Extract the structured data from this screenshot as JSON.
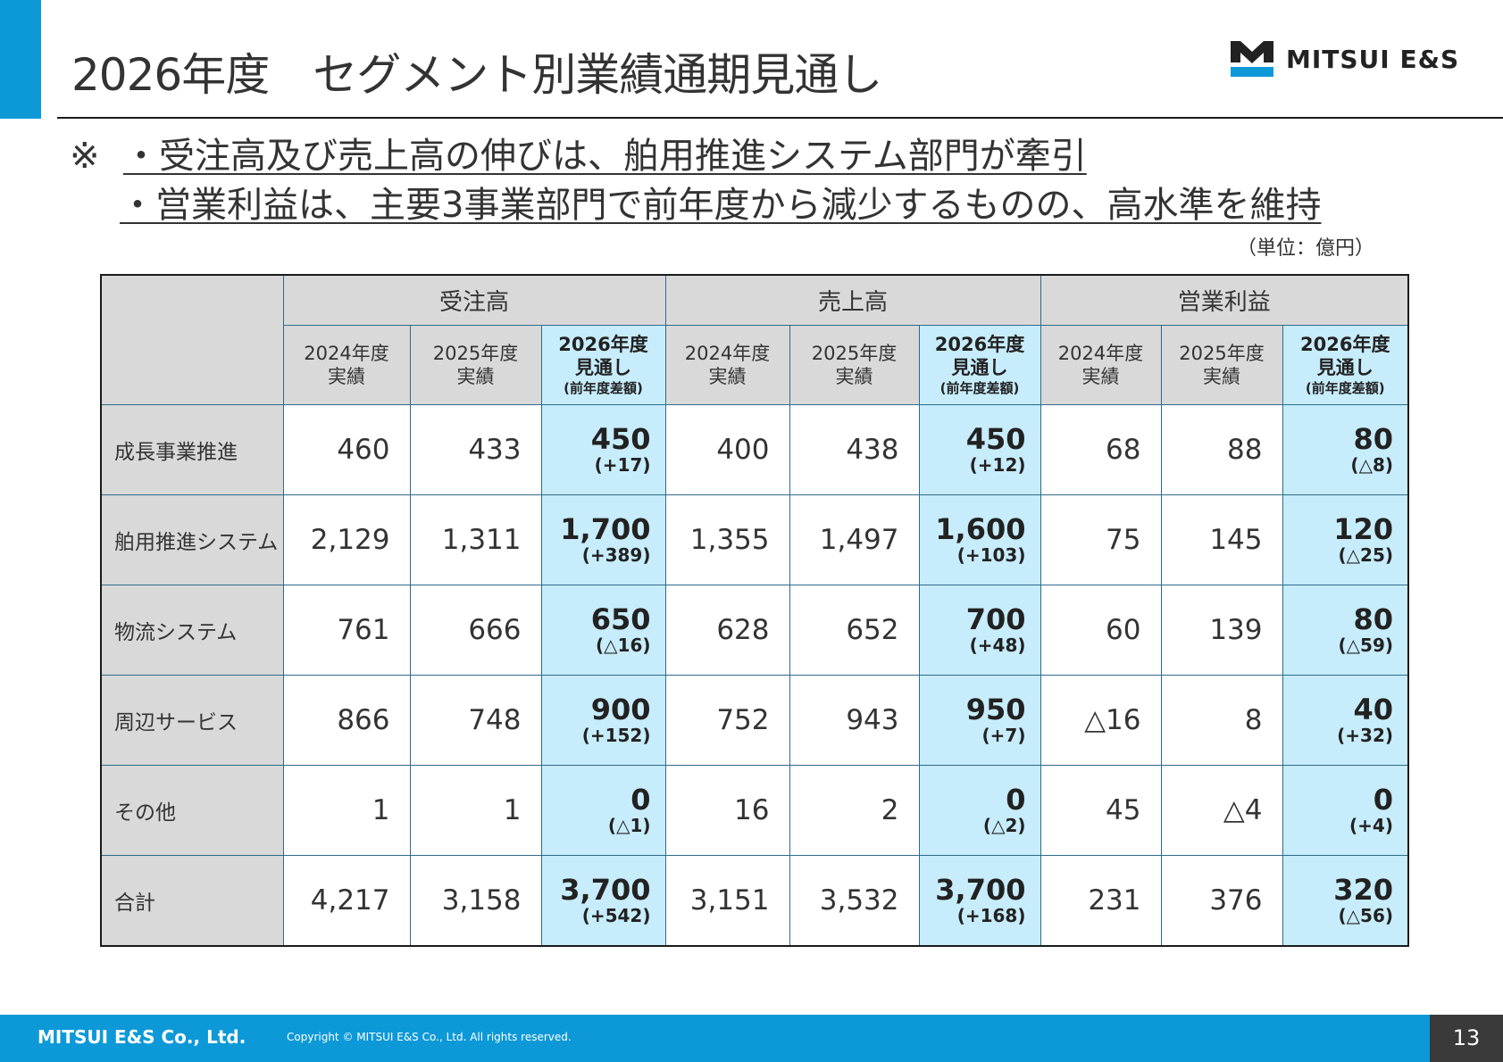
{
  "title": "2026年度　セグメント別業績通期見通し",
  "brand": {
    "name": "MITSUI E&S",
    "colors": {
      "black": "#222222",
      "blue": "#0d99d8"
    }
  },
  "summary": {
    "mark": "※",
    "line1": "・受注高及び売上高の伸びは、舶用推進システム部門が牽引",
    "line2": "・営業利益は、主要3事業部門で前年度から減少するものの、高水準を維持"
  },
  "unit_note": "（単位：億円）",
  "table": {
    "groups": [
      "受注高",
      "売上高",
      "営業利益"
    ],
    "sub_headers": {
      "actual_2024": [
        "2024年度",
        "実績"
      ],
      "actual_2025": [
        "2025年度",
        "実績"
      ],
      "forecast_2026": [
        "2026年度",
        "見通し",
        "(前年度差額)"
      ]
    },
    "rows": [
      {
        "label": "成長事業推進",
        "orders": {
          "y2024": "460",
          "y2025": "433",
          "f2026": "450",
          "diff": "(+17)"
        },
        "sales": {
          "y2024": "400",
          "y2025": "438",
          "f2026": "450",
          "diff": "(+12)"
        },
        "profit": {
          "y2024": "68",
          "y2025": "88",
          "f2026": "80",
          "diff": "(△8)"
        }
      },
      {
        "label": "舶用推進システム",
        "orders": {
          "y2024": "2,129",
          "y2025": "1,311",
          "f2026": "1,700",
          "diff": "(+389)"
        },
        "sales": {
          "y2024": "1,355",
          "y2025": "1,497",
          "f2026": "1,600",
          "diff": "(+103)"
        },
        "profit": {
          "y2024": "75",
          "y2025": "145",
          "f2026": "120",
          "diff": "(△25)"
        }
      },
      {
        "label": "物流システム",
        "orders": {
          "y2024": "761",
          "y2025": "666",
          "f2026": "650",
          "diff": "(△16)"
        },
        "sales": {
          "y2024": "628",
          "y2025": "652",
          "f2026": "700",
          "diff": "(+48)"
        },
        "profit": {
          "y2024": "60",
          "y2025": "139",
          "f2026": "80",
          "diff": "(△59)"
        }
      },
      {
        "label": "周辺サービス",
        "orders": {
          "y2024": "866",
          "y2025": "748",
          "f2026": "900",
          "diff": "(+152)"
        },
        "sales": {
          "y2024": "752",
          "y2025": "943",
          "f2026": "950",
          "diff": "(+7)"
        },
        "profit": {
          "y2024": "△16",
          "y2025": "8",
          "f2026": "40",
          "diff": "(+32)"
        }
      },
      {
        "label": "その他",
        "orders": {
          "y2024": "1",
          "y2025": "1",
          "f2026": "0",
          "diff": "(△1)"
        },
        "sales": {
          "y2024": "16",
          "y2025": "2",
          "f2026": "0",
          "diff": "(△2)"
        },
        "profit": {
          "y2024": "45",
          "y2025": "△4",
          "f2026": "0",
          "diff": "(+4)"
        }
      },
      {
        "label": "合計",
        "orders": {
          "y2024": "4,217",
          "y2025": "3,158",
          "f2026": "3,700",
          "diff": "(+542)"
        },
        "sales": {
          "y2024": "3,151",
          "y2025": "3,532",
          "f2026": "3,700",
          "diff": "(+168)"
        },
        "profit": {
          "y2024": "231",
          "y2025": "376",
          "f2026": "320",
          "diff": "(△56)"
        }
      }
    ]
  },
  "footer": {
    "company": "MITSUI E&S Co., Ltd.",
    "copyright": "Copyright © MITSUI E&S Co., Ltd. All rights reserved.",
    "page_number": "13"
  }
}
